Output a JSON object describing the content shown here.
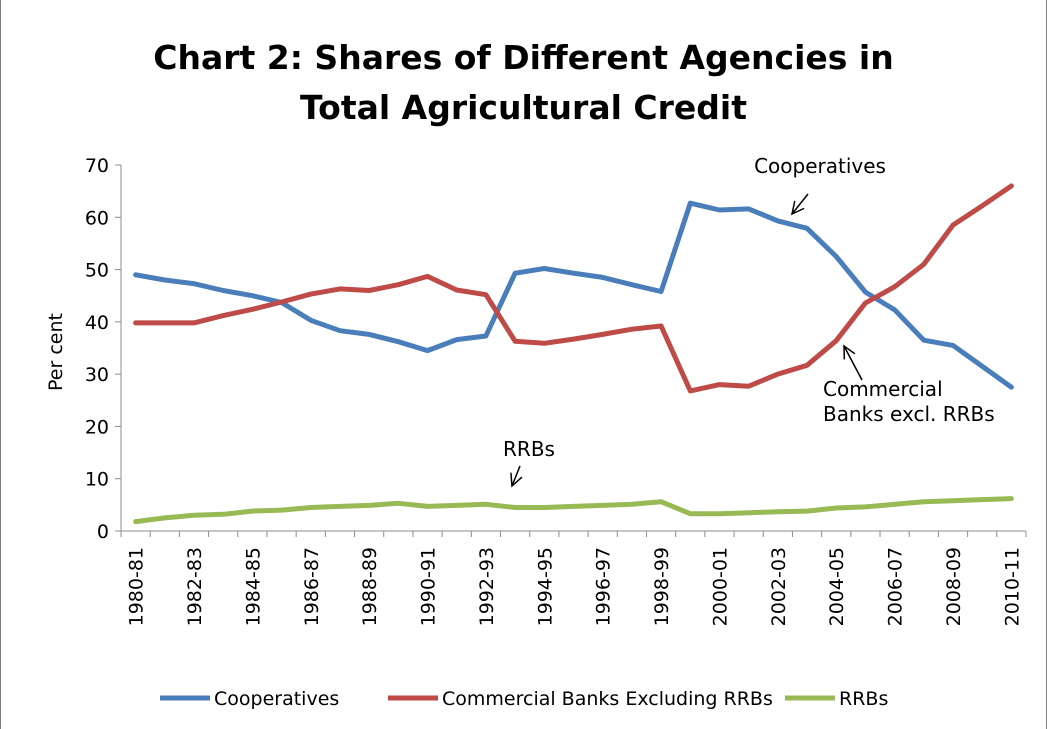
{
  "chart_data": {
    "type": "line",
    "title_line1": "Chart 2: Shares of Different Agencies in",
    "title_line2": "Total Agricultural Credit",
    "xlabel": "",
    "ylabel": "Per cent",
    "ylim": [
      0,
      70
    ],
    "yticks": [
      "0",
      "10",
      "20",
      "30",
      "40",
      "50",
      "60",
      "70"
    ],
    "x": [
      "1980-81",
      "1981-82",
      "1982-83",
      "1983-84",
      "1984-85",
      "1985-86",
      "1986-87",
      "1987-88",
      "1988-89",
      "1989-90",
      "1990-91",
      "1991-92",
      "1992-93",
      "1993-94",
      "1994-95",
      "1995-96",
      "1996-97",
      "1997-98",
      "1998-99",
      "1999-00",
      "2000-01",
      "2001-02",
      "2002-03",
      "2003-04",
      "2004-05",
      "2005-06",
      "2006-07",
      "2007-08",
      "2008-09",
      "2009-10",
      "2010-11"
    ],
    "xtick_labels": [
      "1980-81",
      "1982-83",
      "1984-85",
      "1986-87",
      "1988-89",
      "1990-91",
      "1992-93",
      "1994-95",
      "1996-97",
      "1998-99",
      "2000-01",
      "2002-03",
      "2004-05",
      "2006-07",
      "2008-09",
      "2010-11"
    ],
    "series": [
      {
        "name": "Cooperatives",
        "color": "#4a7ebb",
        "values": [
          49,
          48,
          47.3,
          46,
          45,
          43.7,
          40.3,
          38.3,
          37.6,
          36.2,
          34.5,
          36.6,
          37.3,
          49.3,
          50.2,
          49.3,
          48.5,
          47.1,
          45.8,
          62.7,
          61.4,
          61.6,
          59.3,
          57.9,
          52.5,
          45.7,
          42.3,
          36.5,
          35.5,
          31.5,
          27.5
        ]
      },
      {
        "name": "Commercial Banks Excluding RRBs",
        "color": "#be4b48",
        "values": [
          39.8,
          39.8,
          39.8,
          41.2,
          42.4,
          43.8,
          45.3,
          46.3,
          46,
          47.1,
          48.7,
          46.1,
          45.2,
          36.3,
          35.9,
          36.7,
          37.6,
          38.6,
          39.2,
          26.8,
          28,
          27.7,
          30,
          31.7,
          36.4,
          43.6,
          46.7,
          51,
          58.5,
          62.2,
          66
        ]
      },
      {
        "name": "RRBs",
        "color": "#98b954",
        "values": [
          1.8,
          2.5,
          3,
          3.2,
          3.8,
          4,
          4.5,
          4.7,
          4.9,
          5.3,
          4.7,
          4.9,
          5.1,
          4.5,
          4.5,
          4.7,
          4.9,
          5.1,
          5.6,
          3.3,
          3.3,
          3.5,
          3.7,
          3.8,
          4.4,
          4.6,
          5.1,
          5.6,
          5.8,
          6,
          6.2
        ]
      }
    ],
    "annotations": [
      {
        "lines": [
          "Cooperatives"
        ],
        "target_index": 22,
        "series": 0
      },
      {
        "lines": [
          "Commercial",
          "Banks excl. RRBs"
        ],
        "target_index": 24,
        "series": 1
      },
      {
        "lines": [
          "RRBs"
        ],
        "target_index": 12.5,
        "series": 2
      }
    ],
    "legend_position": "bottom",
    "grid": false
  }
}
